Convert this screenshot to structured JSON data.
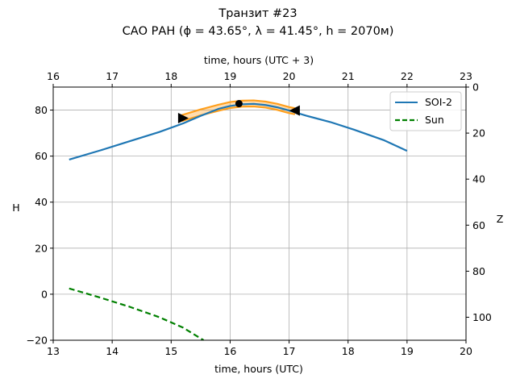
{
  "chart_data": {
    "type": "line",
    "title_line1": "Транзит #23",
    "title_line2": "САО РАН (ϕ = 43.65°, λ = 41.45°, h = 2070м)",
    "xlabel": "time, hours (UTC)",
    "xlabel_top": "time, hours (UTC + 3)",
    "ylabel": "H",
    "ylabel_right": "Z",
    "xlim": [
      13,
      20
    ],
    "ylim": [
      -20,
      90
    ],
    "xlim_top": [
      16,
      23
    ],
    "ylim_right": [
      0,
      110
    ],
    "xticks": [
      13,
      14,
      15,
      16,
      17,
      18,
      19,
      20
    ],
    "xticks_top": [
      16,
      17,
      18,
      19,
      20,
      21,
      22,
      23
    ],
    "yticks": [
      -20,
      0,
      20,
      40,
      60,
      80
    ],
    "yticks_right": [
      0,
      20,
      40,
      60,
      80,
      100
    ],
    "grid": true,
    "legend_position": "top-right",
    "series": [
      {
        "name": "SOI-2",
        "color": "#1f77b4",
        "style": "solid",
        "x": [
          13.27,
          13.8,
          14.3,
          14.8,
          15.2,
          15.5,
          15.8,
          16.0,
          16.2,
          16.4,
          16.6,
          16.8,
          17.0,
          17.3,
          17.7,
          18.1,
          18.6,
          19.0
        ],
        "y": [
          58.5,
          62.5,
          66.5,
          70.5,
          74.2,
          77.5,
          80.5,
          81.8,
          82.5,
          82.7,
          82.2,
          81.2,
          79.8,
          77.5,
          74.8,
          71.5,
          67.0,
          62.3
        ]
      },
      {
        "name": "Sun",
        "color": "#008000",
        "style": "dashed",
        "x": [
          13.27,
          13.8,
          14.3,
          14.8,
          15.2,
          15.55
        ],
        "y": [
          2.5,
          -1.5,
          -5.5,
          -10.0,
          -14.5,
          -20.0
        ]
      }
    ],
    "highlight_band": {
      "color": "#ff9f1c",
      "x": [
        15.18,
        15.5,
        15.8,
        16.0,
        16.2,
        16.4,
        16.6,
        16.8,
        17.0,
        17.1
      ],
      "y": [
        76.5,
        79.0,
        81.0,
        82.2,
        82.8,
        82.9,
        82.4,
        81.4,
        80.0,
        79.5
      ],
      "half_width": 1.3
    },
    "markers": [
      {
        "name": "transit-start",
        "shape": "triangle-right",
        "x": 15.2,
        "y": 76.5
      },
      {
        "name": "transit-peak",
        "shape": "circle",
        "x": 16.15,
        "y": 82.8
      },
      {
        "name": "transit-end",
        "shape": "triangle-left",
        "x": 17.1,
        "y": 79.8
      }
    ]
  }
}
